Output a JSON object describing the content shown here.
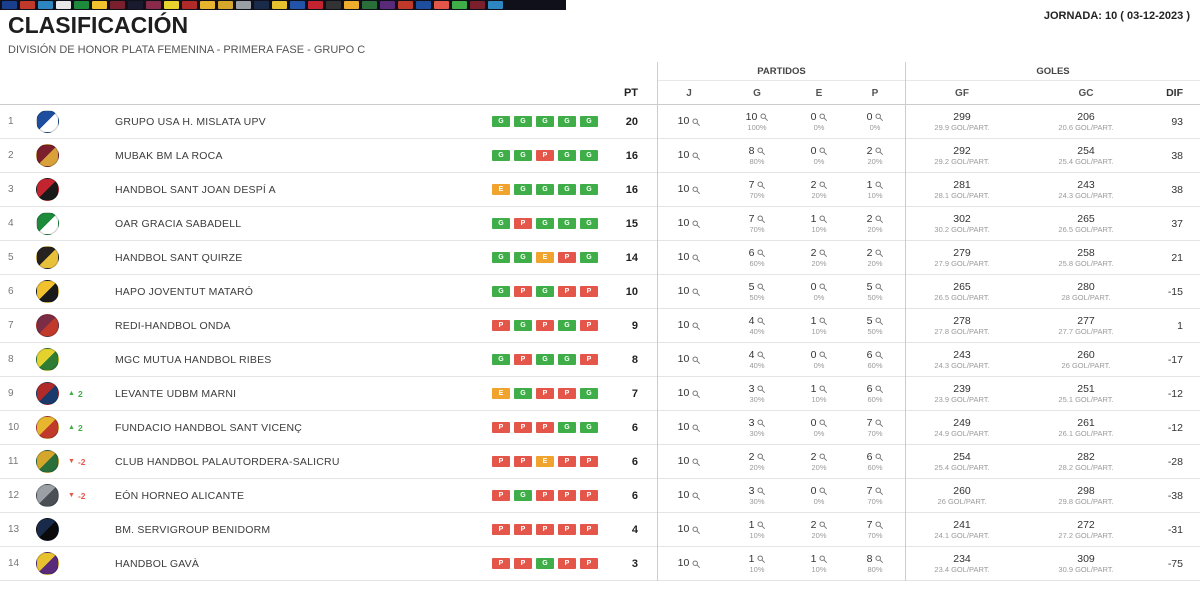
{
  "top_nav": {
    "tiles": [
      "#1b3f8f",
      "#c0392b",
      "#2e86c1",
      "#e8e8e8",
      "#1d8a3c",
      "#f2c12e",
      "#7a1f2b",
      "#1a1a2e",
      "#8a2a4a",
      "#e8d22e",
      "#b02a2a",
      "#e8b52e",
      "#d4a72c",
      "#9aa0a6",
      "#1a2a4a",
      "#e8c12e",
      "#2255aa",
      "#c42430",
      "#333333",
      "#f0ad2d",
      "#2a6e3a",
      "#5a2a7a",
      "#c0392b",
      "#1d4f9e",
      "#e4564a",
      "#3fae49",
      "#7a1f2b",
      "#2e86c1"
    ]
  },
  "header": {
    "title": "CLASIFICACIÓN",
    "subtitle": "DIVISIÓN DE HONOR PLATA FEMENINA - PRIMERA FASE - GRUPO C",
    "jornada": "JORNADA: 10 ( 03-12-2023 )"
  },
  "icons": {
    "up_arrow": "▲",
    "down_arrow": "▼",
    "magnifier": "magnifier-icon"
  },
  "table": {
    "groups": {
      "partidos": "PARTIDOS",
      "goles": "GOLES"
    },
    "columns": {
      "pt": "PT",
      "j": "J",
      "g": "G",
      "e": "E",
      "p": "P",
      "gf": "GF",
      "gc": "GC",
      "dif": "DIF"
    },
    "colors": {
      "win": "#3fae49",
      "draw": "#f0a32d",
      "loss": "#e4564a"
    },
    "rows": [
      {
        "pos": "1",
        "move": null,
        "team": "GRUPO USA H. MISLATA UPV",
        "logo": [
          "#1d4f9e",
          "#ffffff"
        ],
        "form": [
          "G",
          "G",
          "G",
          "G",
          "G"
        ],
        "pt": "20",
        "j": "10",
        "g": "10",
        "g_pct": "100%",
        "e": "0",
        "e_pct": "0%",
        "p": "0",
        "p_pct": "0%",
        "gf": "299",
        "gf_avg": "29.9 GOL/PART.",
        "gc": "206",
        "gc_avg": "20.6 GOL/PART.",
        "dif": "93"
      },
      {
        "pos": "2",
        "move": null,
        "team": "MUBAK BM LA ROCA",
        "logo": [
          "#7a1f2b",
          "#d8a13a"
        ],
        "form": [
          "G",
          "G",
          "P",
          "G",
          "G"
        ],
        "pt": "16",
        "j": "10",
        "g": "8",
        "g_pct": "80%",
        "e": "0",
        "e_pct": "0%",
        "p": "2",
        "p_pct": "20%",
        "gf": "292",
        "gf_avg": "29.2 GOL/PART.",
        "gc": "254",
        "gc_avg": "25.4 GOL/PART.",
        "dif": "38"
      },
      {
        "pos": "3",
        "move": null,
        "team": "HANDBOL SANT JOAN DESPÍ A",
        "logo": [
          "#c42430",
          "#1a1a1a"
        ],
        "form": [
          "E",
          "G",
          "G",
          "G",
          "G"
        ],
        "pt": "16",
        "j": "10",
        "g": "7",
        "g_pct": "70%",
        "e": "2",
        "e_pct": "20%",
        "p": "1",
        "p_pct": "10%",
        "gf": "281",
        "gf_avg": "28.1 GOL/PART.",
        "gc": "243",
        "gc_avg": "24.3 GOL/PART.",
        "dif": "38"
      },
      {
        "pos": "4",
        "move": null,
        "team": "OAR GRACIA SABADELL",
        "logo": [
          "#1d8a3c",
          "#ffffff"
        ],
        "form": [
          "G",
          "P",
          "G",
          "G",
          "G"
        ],
        "pt": "15",
        "j": "10",
        "g": "7",
        "g_pct": "70%",
        "e": "1",
        "e_pct": "10%",
        "p": "2",
        "p_pct": "20%",
        "gf": "302",
        "gf_avg": "30.2 GOL/PART.",
        "gc": "265",
        "gc_avg": "26.5 GOL/PART.",
        "dif": "37"
      },
      {
        "pos": "5",
        "move": null,
        "team": "HANDBOL SANT QUIRZE",
        "logo": [
          "#26221f",
          "#e8c13a"
        ],
        "form": [
          "G",
          "G",
          "E",
          "P",
          "G"
        ],
        "pt": "14",
        "j": "10",
        "g": "6",
        "g_pct": "60%",
        "e": "2",
        "e_pct": "20%",
        "p": "2",
        "p_pct": "20%",
        "gf": "279",
        "gf_avg": "27.9 GOL/PART.",
        "gc": "258",
        "gc_avg": "25.8 GOL/PART.",
        "dif": "21"
      },
      {
        "pos": "6",
        "move": null,
        "team": "HAPO JOVENTUT MATARÓ",
        "logo": [
          "#f2c12e",
          "#1a1a1a"
        ],
        "form": [
          "G",
          "P",
          "G",
          "P",
          "P"
        ],
        "pt": "10",
        "j": "10",
        "g": "5",
        "g_pct": "50%",
        "e": "0",
        "e_pct": "0%",
        "p": "5",
        "p_pct": "50%",
        "gf": "265",
        "gf_avg": "26.5 GOL/PART.",
        "gc": "280",
        "gc_avg": "28 GOL/PART.",
        "dif": "-15"
      },
      {
        "pos": "7",
        "move": null,
        "team": "REDI-HANDBOL ONDA",
        "logo": [
          "#7b2d46",
          "#c0392b"
        ],
        "form": [
          "P",
          "G",
          "P",
          "G",
          "P"
        ],
        "pt": "9",
        "j": "10",
        "g": "4",
        "g_pct": "40%",
        "e": "1",
        "e_pct": "10%",
        "p": "5",
        "p_pct": "50%",
        "gf": "278",
        "gf_avg": "27.8 GOL/PART.",
        "gc": "277",
        "gc_avg": "27.7 GOL/PART.",
        "dif": "1"
      },
      {
        "pos": "8",
        "move": null,
        "team": "MGC MUTUA HANDBOL RIBES",
        "logo": [
          "#e4d22e",
          "#2e7d32"
        ],
        "form": [
          "G",
          "P",
          "G",
          "G",
          "P"
        ],
        "pt": "8",
        "j": "10",
        "g": "4",
        "g_pct": "40%",
        "e": "0",
        "e_pct": "0%",
        "p": "6",
        "p_pct": "60%",
        "gf": "243",
        "gf_avg": "24.3 GOL/PART.",
        "gc": "260",
        "gc_avg": "26 GOL/PART.",
        "dif": "-17"
      },
      {
        "pos": "9",
        "move": {
          "dir": "up",
          "value": "2"
        },
        "team": "LEVANTE UDBM MARNI",
        "logo": [
          "#b02a2a",
          "#1a3a6e"
        ],
        "form": [
          "E",
          "G",
          "P",
          "P",
          "G"
        ],
        "pt": "7",
        "j": "10",
        "g": "3",
        "g_pct": "30%",
        "e": "1",
        "e_pct": "10%",
        "p": "6",
        "p_pct": "60%",
        "gf": "239",
        "gf_avg": "23.9 GOL/PART.",
        "gc": "251",
        "gc_avg": "25.1 GOL/PART.",
        "dif": "-12"
      },
      {
        "pos": "10",
        "move": {
          "dir": "up",
          "value": "2"
        },
        "team": "FUNDACIO HANDBOL SANT VICENÇ",
        "logo": [
          "#e8b52e",
          "#c0392b"
        ],
        "form": [
          "P",
          "P",
          "P",
          "G",
          "G"
        ],
        "pt": "6",
        "j": "10",
        "g": "3",
        "g_pct": "30%",
        "e": "0",
        "e_pct": "0%",
        "p": "7",
        "p_pct": "70%",
        "gf": "249",
        "gf_avg": "24.9 GOL/PART.",
        "gc": "261",
        "gc_avg": "26.1 GOL/PART.",
        "dif": "-12"
      },
      {
        "pos": "11",
        "move": {
          "dir": "down",
          "value": "-2"
        },
        "team": "CLUB HANDBOL PALAUTORDERA-SALICRU",
        "logo": [
          "#d4a72c",
          "#2a6e3a"
        ],
        "form": [
          "P",
          "P",
          "E",
          "P",
          "P"
        ],
        "pt": "6",
        "j": "10",
        "g": "2",
        "g_pct": "20%",
        "e": "2",
        "e_pct": "20%",
        "p": "6",
        "p_pct": "60%",
        "gf": "254",
        "gf_avg": "25.4 GOL/PART.",
        "gc": "282",
        "gc_avg": "28.2 GOL/PART.",
        "dif": "-28"
      },
      {
        "pos": "12",
        "move": {
          "dir": "down",
          "value": "-2"
        },
        "team": "EÓN HORNEO ALICANTE",
        "logo": [
          "#9aa0a6",
          "#4a4f55"
        ],
        "form": [
          "P",
          "G",
          "P",
          "P",
          "P"
        ],
        "pt": "6",
        "j": "10",
        "g": "3",
        "g_pct": "30%",
        "e": "0",
        "e_pct": "0%",
        "p": "7",
        "p_pct": "70%",
        "gf": "260",
        "gf_avg": "26 GOL/PART.",
        "gc": "298",
        "gc_avg": "29.8 GOL/PART.",
        "dif": "-38"
      },
      {
        "pos": "13",
        "move": null,
        "team": "BM. SERVIGROUP BENIDORM",
        "logo": [
          "#1a2a4a",
          "#0a0a0a"
        ],
        "form": [
          "P",
          "P",
          "P",
          "P",
          "P"
        ],
        "pt": "4",
        "j": "10",
        "g": "1",
        "g_pct": "10%",
        "e": "2",
        "e_pct": "20%",
        "p": "7",
        "p_pct": "70%",
        "gf": "241",
        "gf_avg": "24.1 GOL/PART.",
        "gc": "272",
        "gc_avg": "27.2 GOL/PART.",
        "dif": "-31"
      },
      {
        "pos": "14",
        "move": null,
        "team": "HANDBOL GAVÀ",
        "logo": [
          "#e8c12e",
          "#5a2a7a"
        ],
        "form": [
          "P",
          "P",
          "G",
          "P",
          "P"
        ],
        "pt": "3",
        "j": "10",
        "g": "1",
        "g_pct": "10%",
        "e": "1",
        "e_pct": "10%",
        "p": "8",
        "p_pct": "80%",
        "gf": "234",
        "gf_avg": "23.4 GOL/PART.",
        "gc": "309",
        "gc_avg": "30.9 GOL/PART.",
        "dif": "-75"
      }
    ]
  }
}
